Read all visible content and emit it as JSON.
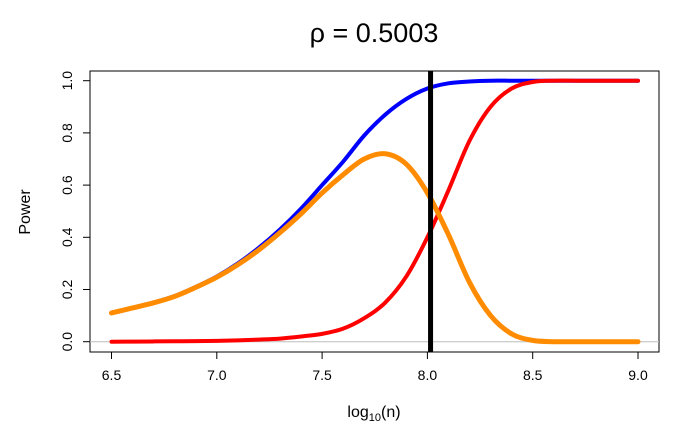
{
  "chart_data": {
    "type": "line",
    "title": "ρ = 0.5003",
    "xlabel_main": "log",
    "xlabel_sub": "10",
    "xlabel_tail": "(n)",
    "ylabel": "Power",
    "xlim": [
      6.5,
      9.0
    ],
    "ylim": [
      0,
      1
    ],
    "xticks": [
      "6.5",
      "7.0",
      "7.5",
      "8.0",
      "8.5",
      "9.0"
    ],
    "xtick_values": [
      6.5,
      7.0,
      7.5,
      8.0,
      8.5,
      9.0
    ],
    "yticks": [
      "0.0",
      "0.2",
      "0.4",
      "0.6",
      "0.8",
      "1.0"
    ],
    "ytick_values": [
      0,
      0.2,
      0.4,
      0.6,
      0.8,
      1.0
    ],
    "grid": false,
    "reference_hline": 0,
    "vline": 8.015,
    "x": [
      6.5,
      6.6,
      6.7,
      6.8,
      6.9,
      7.0,
      7.1,
      7.2,
      7.3,
      7.4,
      7.5,
      7.6,
      7.7,
      7.8,
      7.9,
      8.0,
      8.1,
      8.2,
      8.3,
      8.4,
      8.5,
      8.6,
      8.7,
      8.8,
      8.9,
      9.0
    ],
    "series": [
      {
        "name": "blue",
        "color": "#0000ff",
        "values": [
          0.11,
          0.13,
          0.15,
          0.175,
          0.21,
          0.25,
          0.3,
          0.36,
          0.43,
          0.51,
          0.6,
          0.69,
          0.79,
          0.87,
          0.93,
          0.97,
          0.99,
          0.997,
          1,
          1,
          1,
          1,
          1,
          1,
          1,
          1
        ]
      },
      {
        "name": "red",
        "color": "#ff0000",
        "values": [
          0.0,
          0.0005,
          0.001,
          0.0015,
          0.002,
          0.003,
          0.005,
          0.008,
          0.012,
          0.02,
          0.03,
          0.05,
          0.09,
          0.15,
          0.25,
          0.4,
          0.58,
          0.77,
          0.9,
          0.97,
          0.995,
          1,
          1,
          1,
          1,
          1
        ]
      },
      {
        "name": "orange",
        "color": "#ff8c00",
        "values": [
          0.11,
          0.1295,
          0.149,
          0.1735,
          0.208,
          0.247,
          0.295,
          0.352,
          0.418,
          0.49,
          0.57,
          0.64,
          0.7,
          0.72,
          0.68,
          0.57,
          0.41,
          0.227,
          0.1,
          0.03,
          0.005,
          0,
          0,
          0,
          0,
          0
        ]
      }
    ]
  }
}
